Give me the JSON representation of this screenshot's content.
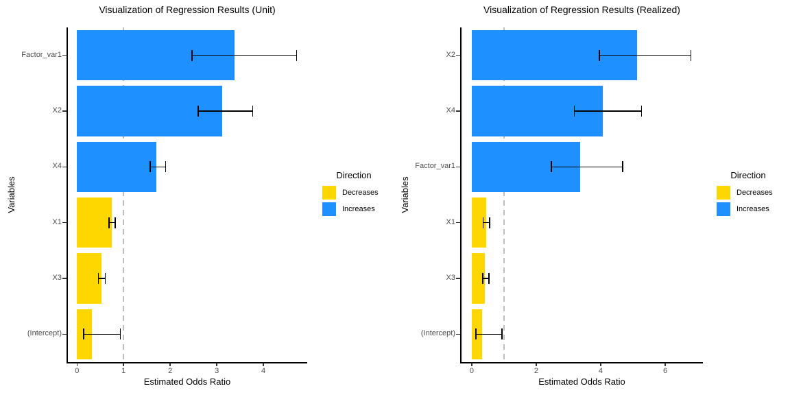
{
  "figure": {
    "background": "#ffffff",
    "accent_colors": {
      "increase_blue": "#1E90FF",
      "decrease_yellow": "#FFD700",
      "reference_line_gray": "#BEBEBE",
      "axis_text_gray": "#4D4D4D"
    }
  },
  "chart_data": [
    {
      "type": "bar",
      "orientation": "horizontal",
      "title": "Visualization of Regression Results (Unit)",
      "xlabel": "Estimated Odds Ratio",
      "ylabel": "Variables",
      "xlim": [
        -0.21,
        4.94
      ],
      "xticks": [
        0,
        1,
        2,
        3,
        4
      ],
      "reference_line_x": 1,
      "grid": false,
      "categories": [
        "Factor_var1",
        "X2",
        "X4",
        "X1",
        "X3",
        "(Intercept)"
      ],
      "values": [
        3.38,
        3.12,
        1.71,
        0.74,
        0.53,
        0.32
      ],
      "ci_low": [
        2.46,
        2.59,
        1.56,
        0.68,
        0.45,
        0.13
      ],
      "ci_high": [
        4.72,
        3.78,
        1.91,
        0.83,
        0.62,
        0.94
      ],
      "directions": [
        "Increases",
        "Increases",
        "Increases",
        "Decreases",
        "Decreases",
        "Decreases"
      ],
      "colors": {
        "Decreases": "#FFD700",
        "Increases": "#1E90FF"
      },
      "legend": {
        "title": "Direction",
        "position": "right",
        "entries": [
          {
            "label": "Decreases",
            "color": "#FFD700"
          },
          {
            "label": "Increases",
            "color": "#1E90FF"
          }
        ]
      }
    },
    {
      "type": "bar",
      "orientation": "horizontal",
      "title": "Visualization of Regression Results (Realized)",
      "xlabel": "Estimated Odds Ratio",
      "ylabel": "Variables",
      "xlim": [
        -0.34,
        7.17
      ],
      "xticks": [
        0,
        2,
        4,
        6
      ],
      "reference_line_x": 1,
      "grid": false,
      "categories": [
        "X2",
        "X4",
        "Factor_var1",
        "X1",
        "X3",
        "(Intercept)"
      ],
      "values": [
        5.13,
        4.06,
        3.36,
        0.45,
        0.41,
        0.32
      ],
      "ci_low": [
        3.94,
        3.17,
        2.45,
        0.34,
        0.33,
        0.11
      ],
      "ci_high": [
        6.81,
        5.28,
        4.7,
        0.57,
        0.55,
        0.95
      ],
      "directions": [
        "Increases",
        "Increases",
        "Increases",
        "Decreases",
        "Decreases",
        "Decreases"
      ],
      "colors": {
        "Decreases": "#FFD700",
        "Increases": "#1E90FF"
      },
      "legend": {
        "title": "Direction",
        "position": "right",
        "entries": [
          {
            "label": "Decreases",
            "color": "#FFD700"
          },
          {
            "label": "Increases",
            "color": "#1E90FF"
          }
        ]
      }
    }
  ]
}
